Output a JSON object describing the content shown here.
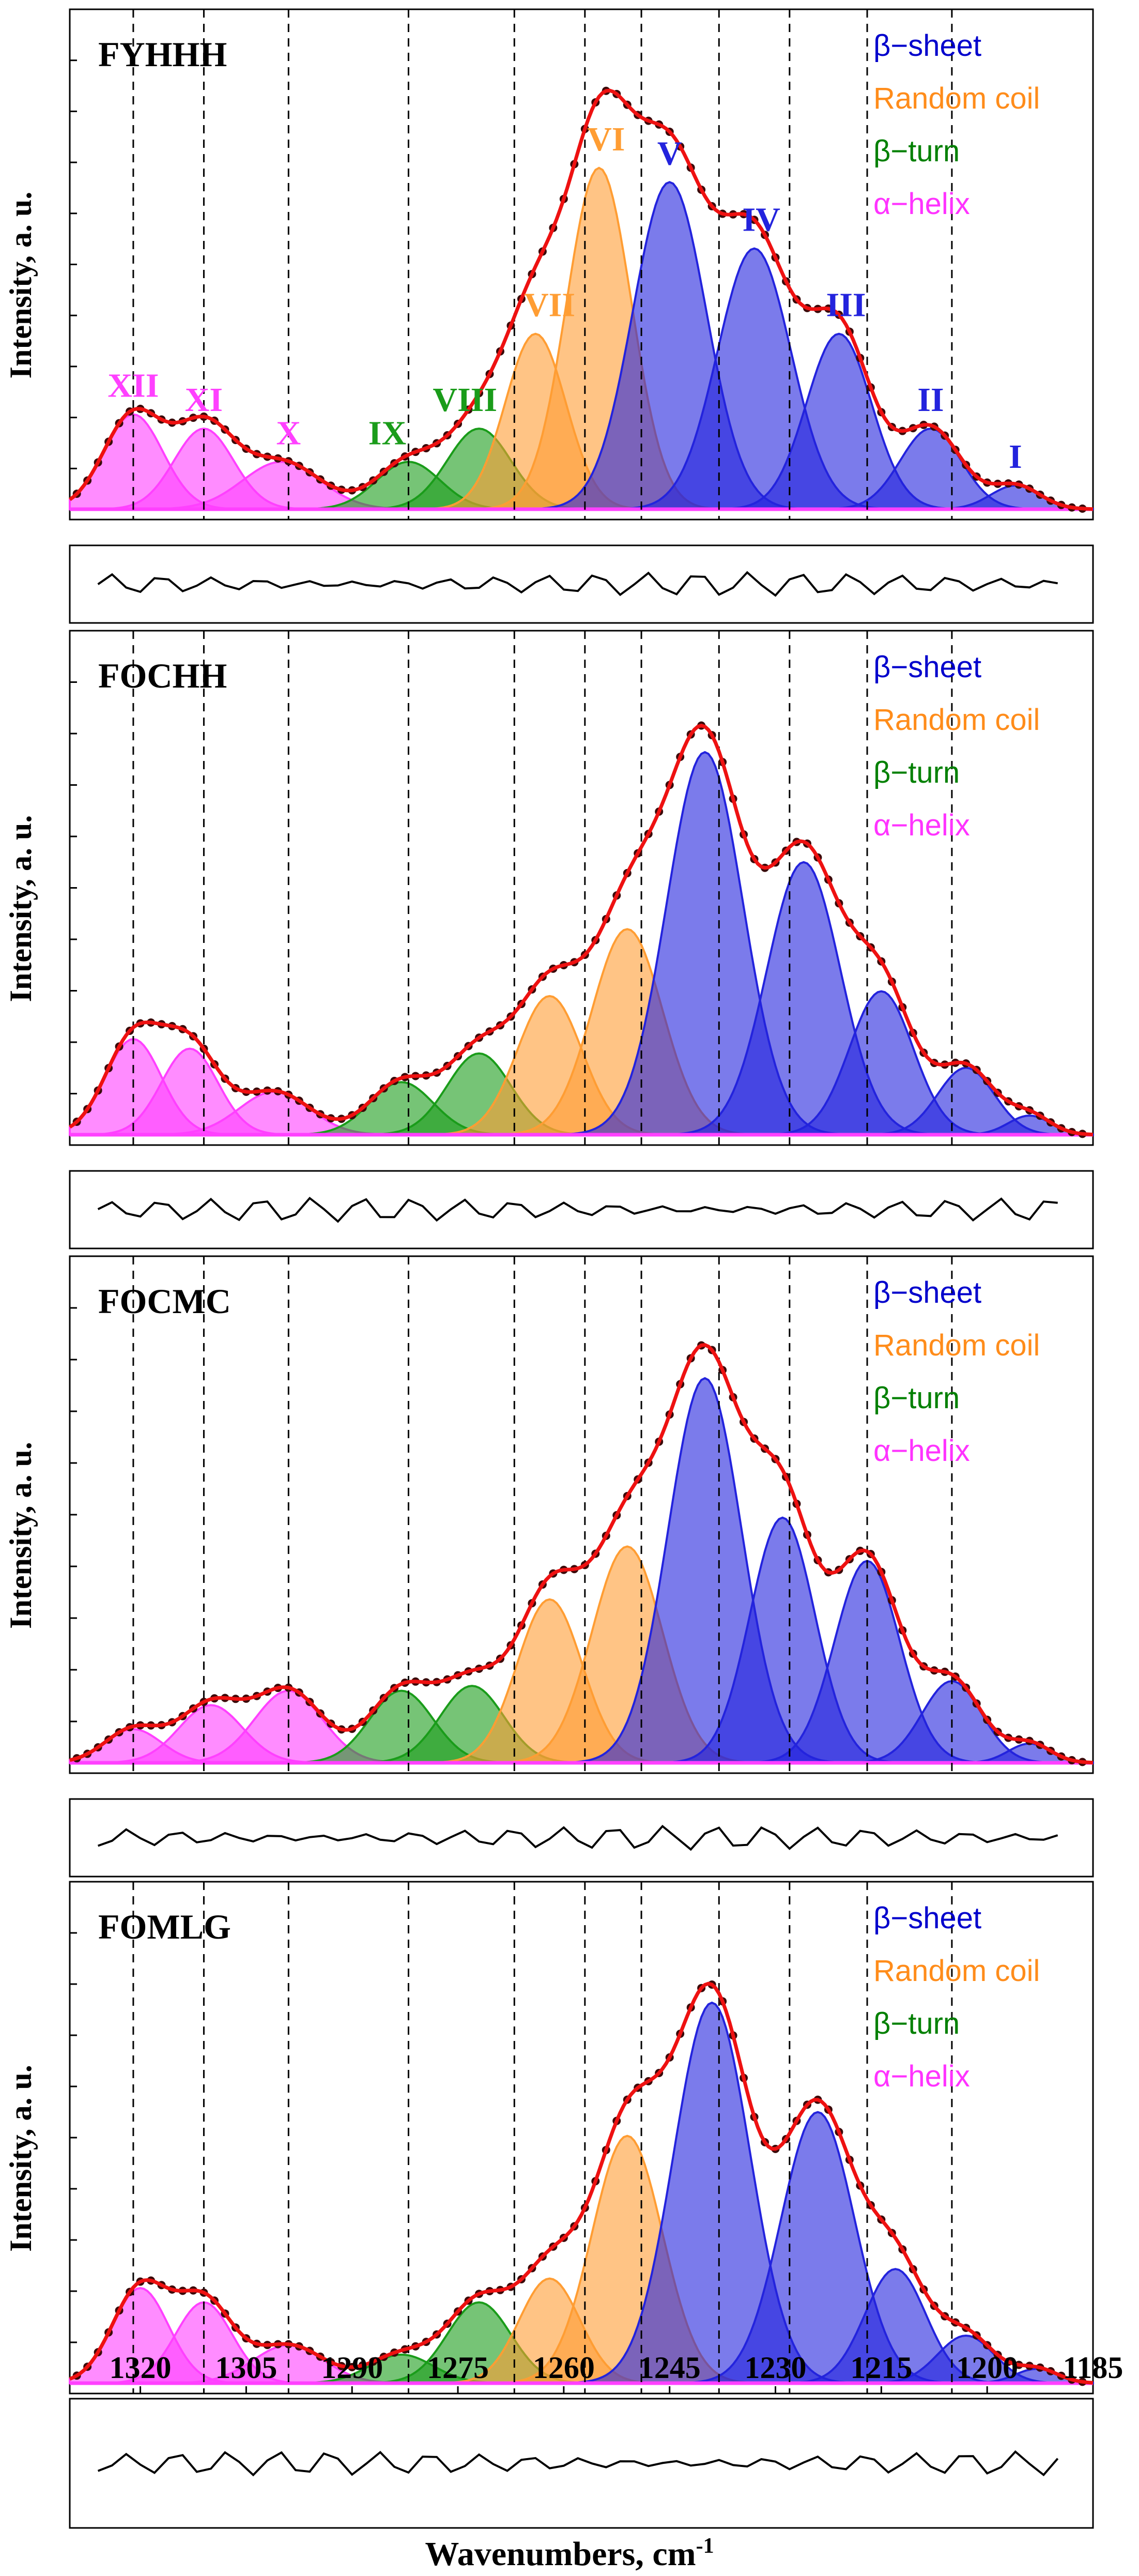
{
  "chart_data": {
    "type": "area",
    "title": "",
    "xlabel": "Wavenumbers, cm",
    "xlabel_superscript": "-1",
    "ylabel": "Intensity, a. u.",
    "xlim": [
      1330,
      1185
    ],
    "x_ticks": [
      "1320",
      "1305",
      "1290",
      "1275",
      "1260",
      "1245",
      "1230",
      "1215",
      "1200",
      "1185"
    ],
    "vertical_reference_lines": [
      1321,
      1311,
      1299,
      1282,
      1267,
      1257,
      1249,
      1238,
      1228,
      1217,
      1205
    ],
    "legend": [
      {
        "label": "β−sheet",
        "color": "#0000cc"
      },
      {
        "label": "Random coil",
        "color": "#ff8c1a"
      },
      {
        "label": "β−turn",
        "color": "#008000"
      },
      {
        "label": "α−helix",
        "color": "#ff33ff"
      }
    ],
    "colors": {
      "beta_sheet": "#2323dd",
      "random_coil": "#ff9d33",
      "beta_turn": "#1a9c1a",
      "alpha_helix": "#ff40ff",
      "fit_line": "#ee1111",
      "data_points": "#3a0a0a"
    },
    "panels": [
      {
        "name": "FYHHH",
        "band_labels": [
          {
            "text": "XII",
            "class": "alpha_helix",
            "x": 1321
          },
          {
            "text": "XI",
            "class": "alpha_helix",
            "x": 1311
          },
          {
            "text": "X",
            "class": "alpha_helix",
            "x": 1299
          },
          {
            "text": "IX",
            "class": "beta_turn",
            "x": 1285
          },
          {
            "text": "VIII",
            "class": "beta_turn",
            "x": 1274
          },
          {
            "text": "VII",
            "class": "random_coil",
            "x": 1262
          },
          {
            "text": "VI",
            "class": "random_coil",
            "x": 1254
          },
          {
            "text": "V",
            "class": "beta_sheet",
            "x": 1245
          },
          {
            "text": "IV",
            "class": "beta_sheet",
            "x": 1232
          },
          {
            "text": "III",
            "class": "beta_sheet",
            "x": 1220
          },
          {
            "text": "II",
            "class": "beta_sheet",
            "x": 1208
          },
          {
            "text": "I",
            "class": "beta_sheet",
            "x": 1196
          }
        ],
        "bands": [
          {
            "label": "XII",
            "class": "alpha_helix",
            "center": 1321,
            "height": 0.2,
            "width": 4.2
          },
          {
            "label": "XI",
            "class": "alpha_helix",
            "center": 1311,
            "height": 0.17,
            "width": 4.2
          },
          {
            "label": "X",
            "class": "alpha_helix",
            "center": 1300,
            "height": 0.1,
            "width": 5.5
          },
          {
            "label": "IX",
            "class": "beta_turn",
            "center": 1282,
            "height": 0.1,
            "width": 4.5
          },
          {
            "label": "VIII",
            "class": "beta_turn",
            "center": 1272,
            "height": 0.17,
            "width": 4.5
          },
          {
            "label": "VII",
            "class": "random_coil",
            "center": 1264,
            "height": 0.37,
            "width": 4.3
          },
          {
            "label": "VI",
            "class": "random_coil",
            "center": 1255,
            "height": 0.72,
            "width": 4.6
          },
          {
            "label": "V",
            "class": "beta_sheet",
            "center": 1245,
            "height": 0.69,
            "width": 5.2
          },
          {
            "label": "IV",
            "class": "beta_sheet",
            "center": 1233,
            "height": 0.55,
            "width": 5.2
          },
          {
            "label": "III",
            "class": "beta_sheet",
            "center": 1221,
            "height": 0.37,
            "width": 4.6
          },
          {
            "label": "II",
            "class": "beta_sheet",
            "center": 1208,
            "height": 0.17,
            "width": 4.3
          },
          {
            "label": "I",
            "class": "beta_sheet",
            "center": 1196,
            "height": 0.05,
            "width": 3.5
          }
        ]
      },
      {
        "name": "FOCHH",
        "bands": [
          {
            "label": "XII",
            "class": "alpha_helix",
            "center": 1321,
            "height": 0.2,
            "width": 4.0
          },
          {
            "label": "XI",
            "class": "alpha_helix",
            "center": 1313,
            "height": 0.18,
            "width": 4.0
          },
          {
            "label": "X",
            "class": "alpha_helix",
            "center": 1301,
            "height": 0.09,
            "width": 5.0
          },
          {
            "label": "IX",
            "class": "beta_turn",
            "center": 1283,
            "height": 0.11,
            "width": 4.5
          },
          {
            "label": "VIII",
            "class": "beta_turn",
            "center": 1272,
            "height": 0.17,
            "width": 4.5
          },
          {
            "label": "VII",
            "class": "random_coil",
            "center": 1262,
            "height": 0.29,
            "width": 4.6
          },
          {
            "label": "VI",
            "class": "random_coil",
            "center": 1251,
            "height": 0.43,
            "width": 5.0
          },
          {
            "label": "V",
            "class": "beta_sheet",
            "center": 1240,
            "height": 0.8,
            "width": 5.4
          },
          {
            "label": "IV",
            "class": "beta_sheet",
            "center": 1226,
            "height": 0.57,
            "width": 5.2
          },
          {
            "label": "III",
            "class": "beta_sheet",
            "center": 1215,
            "height": 0.3,
            "width": 4.5
          },
          {
            "label": "II",
            "class": "beta_sheet",
            "center": 1203,
            "height": 0.14,
            "width": 4.0
          },
          {
            "label": "I",
            "class": "beta_sheet",
            "center": 1194,
            "height": 0.04,
            "width": 3.0
          }
        ]
      },
      {
        "name": "FOCMC",
        "bands": [
          {
            "label": "XII",
            "class": "alpha_helix",
            "center": 1321,
            "height": 0.07,
            "width": 4.0
          },
          {
            "label": "XI",
            "class": "alpha_helix",
            "center": 1310,
            "height": 0.12,
            "width": 4.5
          },
          {
            "label": "X",
            "class": "alpha_helix",
            "center": 1299,
            "height": 0.15,
            "width": 4.8
          },
          {
            "label": "IX",
            "class": "beta_turn",
            "center": 1283,
            "height": 0.15,
            "width": 4.5
          },
          {
            "label": "VIII",
            "class": "beta_turn",
            "center": 1273,
            "height": 0.16,
            "width": 4.5
          },
          {
            "label": "VII",
            "class": "random_coil",
            "center": 1262,
            "height": 0.34,
            "width": 4.6
          },
          {
            "label": "VI",
            "class": "random_coil",
            "center": 1251,
            "height": 0.45,
            "width": 5.0
          },
          {
            "label": "V",
            "class": "beta_sheet",
            "center": 1240,
            "height": 0.8,
            "width": 5.2
          },
          {
            "label": "IV",
            "class": "beta_sheet",
            "center": 1229,
            "height": 0.51,
            "width": 4.6
          },
          {
            "label": "III",
            "class": "beta_sheet",
            "center": 1217,
            "height": 0.42,
            "width": 4.6
          },
          {
            "label": "II",
            "class": "beta_sheet",
            "center": 1205,
            "height": 0.17,
            "width": 4.2
          },
          {
            "label": "I",
            "class": "beta_sheet",
            "center": 1194,
            "height": 0.04,
            "width": 3.0
          }
        ]
      },
      {
        "name": "FOMLG",
        "bands": [
          {
            "label": "XII",
            "class": "alpha_helix",
            "center": 1320,
            "height": 0.2,
            "width": 4.0
          },
          {
            "label": "XI",
            "class": "alpha_helix",
            "center": 1311,
            "height": 0.17,
            "width": 4.0
          },
          {
            "label": "X",
            "class": "alpha_helix",
            "center": 1299,
            "height": 0.08,
            "width": 5.0
          },
          {
            "label": "IX",
            "class": "beta_turn",
            "center": 1283,
            "height": 0.06,
            "width": 4.5
          },
          {
            "label": "VIII",
            "class": "beta_turn",
            "center": 1272,
            "height": 0.17,
            "width": 4.5
          },
          {
            "label": "VII",
            "class": "random_coil",
            "center": 1262,
            "height": 0.22,
            "width": 4.3
          },
          {
            "label": "VI",
            "class": "random_coil",
            "center": 1251,
            "height": 0.52,
            "width": 5.0
          },
          {
            "label": "V",
            "class": "beta_sheet",
            "center": 1239,
            "height": 0.8,
            "width": 5.4
          },
          {
            "label": "IV",
            "class": "beta_sheet",
            "center": 1224,
            "height": 0.57,
            "width": 5.2
          },
          {
            "label": "III",
            "class": "beta_sheet",
            "center": 1213,
            "height": 0.24,
            "width": 4.3
          },
          {
            "label": "II",
            "class": "beta_sheet",
            "center": 1203,
            "height": 0.1,
            "width": 4.0
          },
          {
            "label": "I",
            "class": "beta_sheet",
            "center": 1193,
            "height": 0.03,
            "width": 3.0
          }
        ]
      }
    ]
  }
}
